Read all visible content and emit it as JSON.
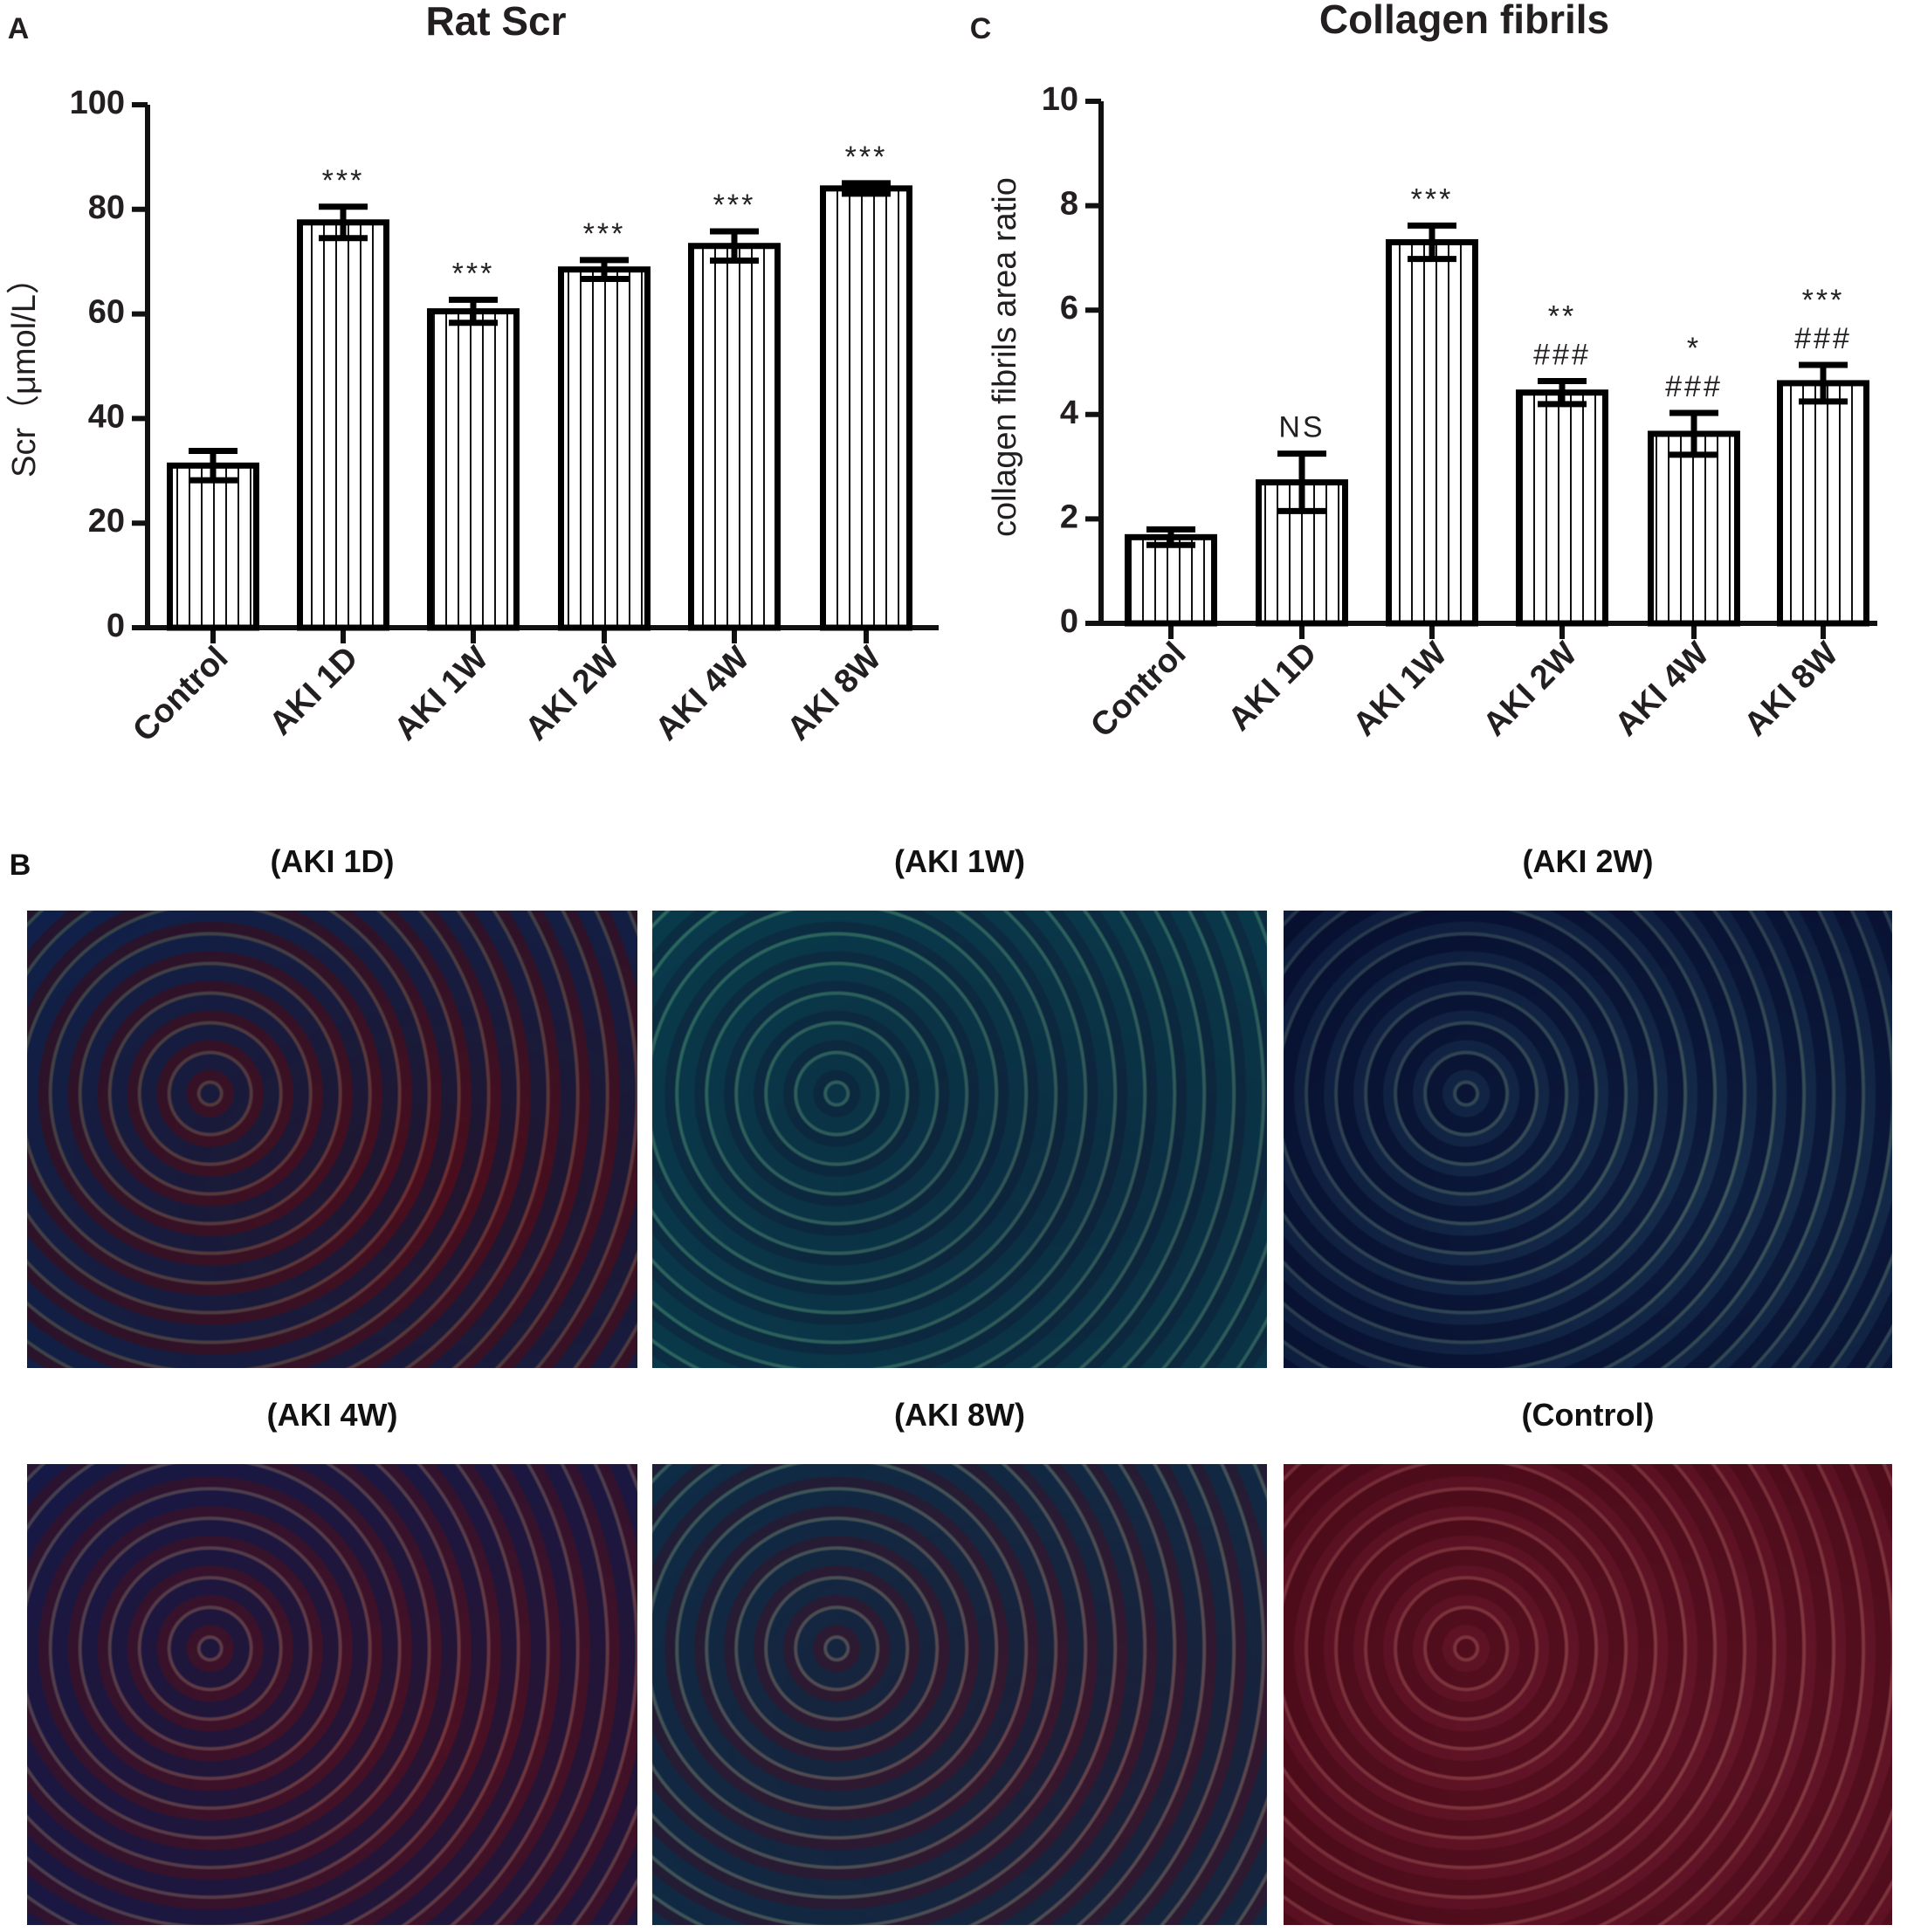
{
  "chart_data": [
    {
      "type": "bar",
      "panel_label": "A",
      "title": "Rat Scr",
      "ylabel": "Scr（μmol/L）",
      "categories": [
        "Control",
        "AKI 1D",
        "AKI 1W",
        "AKI 2W",
        "AKI 4W",
        "AKI 8W"
      ],
      "values": [
        31,
        77.5,
        60.5,
        68.5,
        73,
        84
      ],
      "errors": [
        2.8,
        3,
        2.2,
        1.8,
        2.8,
        1
      ],
      "annotations": [
        null,
        [
          "***"
        ],
        [
          "***"
        ],
        [
          "***"
        ],
        [
          "***"
        ],
        [
          "***"
        ]
      ],
      "ylim": [
        0,
        100
      ],
      "yticks": [
        0,
        20,
        40,
        60,
        80,
        100
      ],
      "color": "#000000"
    },
    {
      "type": "bar",
      "panel_label": "C",
      "title": "Collagen fibrils",
      "ylabel": "collagen fibrils area ratio",
      "categories": [
        "Control",
        "AKI 1D",
        "AKI 1W",
        "AKI 2W",
        "AKI 4W",
        "AKI 8W"
      ],
      "values": [
        1.65,
        2.7,
        7.3,
        4.42,
        3.63,
        4.6
      ],
      "errors": [
        0.15,
        0.55,
        0.32,
        0.22,
        0.4,
        0.35
      ],
      "annotations": [
        null,
        [
          "NS"
        ],
        [
          "***"
        ],
        [
          "**",
          "###"
        ],
        [
          "*",
          "###"
        ],
        [
          "***",
          "###"
        ]
      ],
      "ylim": [
        0,
        10
      ],
      "yticks": [
        0,
        2,
        4,
        6,
        8,
        10
      ],
      "color": "#000000"
    }
  ],
  "panel_b": {
    "label": "B",
    "titles": [
      "(AKI 1D)",
      "(AKI 1W)",
      "(AKI 2W)",
      "(AKI 4W)",
      "(AKI 8W)",
      "(Control)"
    ]
  }
}
